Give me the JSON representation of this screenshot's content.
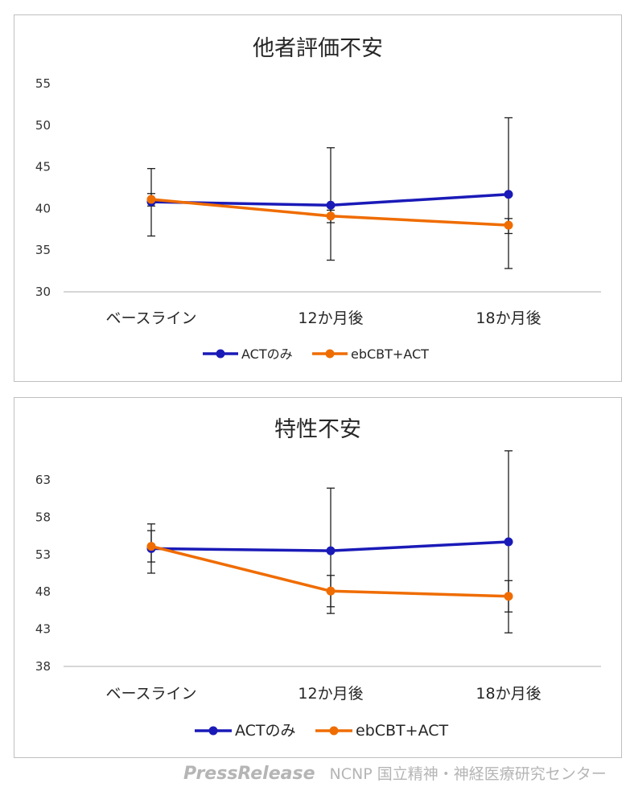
{
  "chart_data": [
    {
      "type": "line",
      "title": "他者評価不安",
      "categories": [
        "ベースライン",
        "12か月後",
        "18か月後"
      ],
      "yticks": [
        30,
        35,
        40,
        45,
        50,
        55
      ],
      "ylim": [
        30,
        55
      ],
      "grid": false,
      "legend_position": "bottom",
      "series": [
        {
          "name": "ACTのみ",
          "color": "#1a1ab8",
          "values": [
            40.8,
            40.4,
            41.7
          ],
          "error_low": [
            36.7,
            33.8,
            32.8
          ],
          "error_high": [
            44.8,
            47.3,
            50.9
          ]
        },
        {
          "name": "ebCBT+ACT",
          "color": "#ef6c00",
          "values": [
            41.1,
            39.1,
            38.0
          ],
          "error_low": [
            40.3,
            38.3,
            37.0
          ],
          "error_high": [
            41.8,
            39.8,
            38.8
          ]
        }
      ]
    },
    {
      "type": "line",
      "title": "特性不安",
      "categories": [
        "ベースライン",
        "12か月後",
        "18か月後"
      ],
      "yticks": [
        38,
        43,
        48,
        53,
        58,
        63
      ],
      "ylim": [
        38,
        63
      ],
      "grid": false,
      "legend_position": "bottom",
      "series": [
        {
          "name": "ACTのみ",
          "color": "#1a1ab8",
          "values": [
            53.8,
            53.5,
            54.7
          ],
          "error_low": [
            50.5,
            45.1,
            42.5
          ],
          "error_high": [
            57.1,
            61.9,
            66.9
          ]
        },
        {
          "name": "ebCBT+ACT",
          "color": "#ef6c00",
          "values": [
            54.1,
            48.1,
            47.4
          ],
          "error_low": [
            52.0,
            46.0,
            45.3
          ],
          "error_high": [
            56.2,
            50.2,
            49.5
          ]
        }
      ]
    }
  ],
  "footer": {
    "brand": "PressRelease",
    "org": "NCNP 国立精神・神経医療研究センター"
  }
}
